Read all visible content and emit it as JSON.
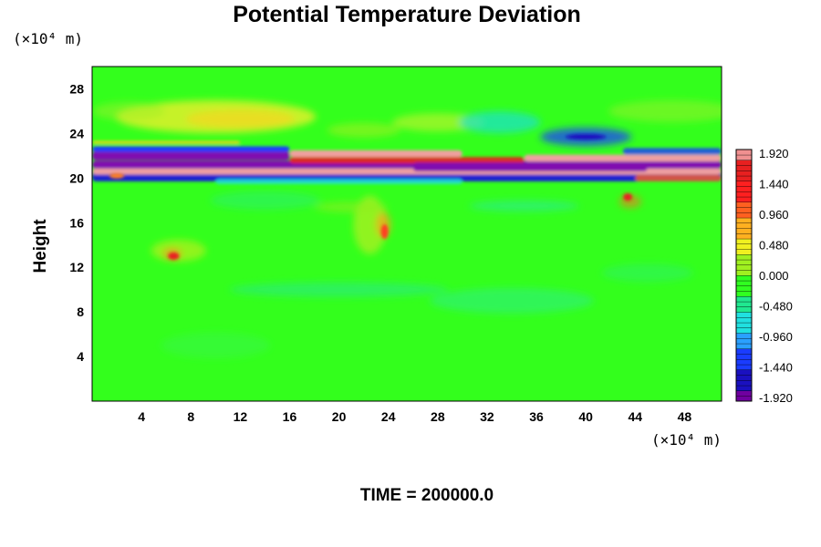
{
  "chart_data": {
    "type": "heatmap",
    "title": "Potential Temperature Deviation",
    "ylabel": "Height",
    "xlabel": "",
    "x_unit": "(×10⁴ m)",
    "y_unit": "(×10⁴ m)",
    "xlim": [
      0,
      51
    ],
    "ylim": [
      0,
      30
    ],
    "x_ticks": [
      "4",
      "8",
      "12",
      "16",
      "20",
      "24",
      "28",
      "32",
      "36",
      "40",
      "44",
      "48"
    ],
    "y_ticks": [
      "4",
      "8",
      "12",
      "16",
      "20",
      "24",
      "28"
    ],
    "colorbar": {
      "range": [
        -1.92,
        1.92
      ],
      "tick_labels": [
        "1.920",
        "1.440",
        "0.960",
        "0.480",
        "0.000",
        "-0.480",
        "-0.960",
        "-1.440",
        "-1.920"
      ],
      "colors": [
        "#7000a0",
        "#1a10c0",
        "#1a3cff",
        "#2aa0ff",
        "#20e0e0",
        "#20e890",
        "#30ff20",
        "#a0f020",
        "#f0f020",
        "#ffb020",
        "#ff6020",
        "#ff2020",
        "#e82020",
        "#f09090"
      ]
    },
    "features": [
      {
        "label": "strong alternating band near y=20-22",
        "y": 21
      },
      {
        "label": "positive blob",
        "x": 23.5,
        "y": 15.5
      },
      {
        "label": "positive blob",
        "x": 6.5,
        "y": 13
      },
      {
        "label": "positive blob",
        "x": 43,
        "y": 18
      }
    ],
    "background_value": 0.0
  },
  "footer": {
    "time_label": "TIME = 200000.0"
  }
}
